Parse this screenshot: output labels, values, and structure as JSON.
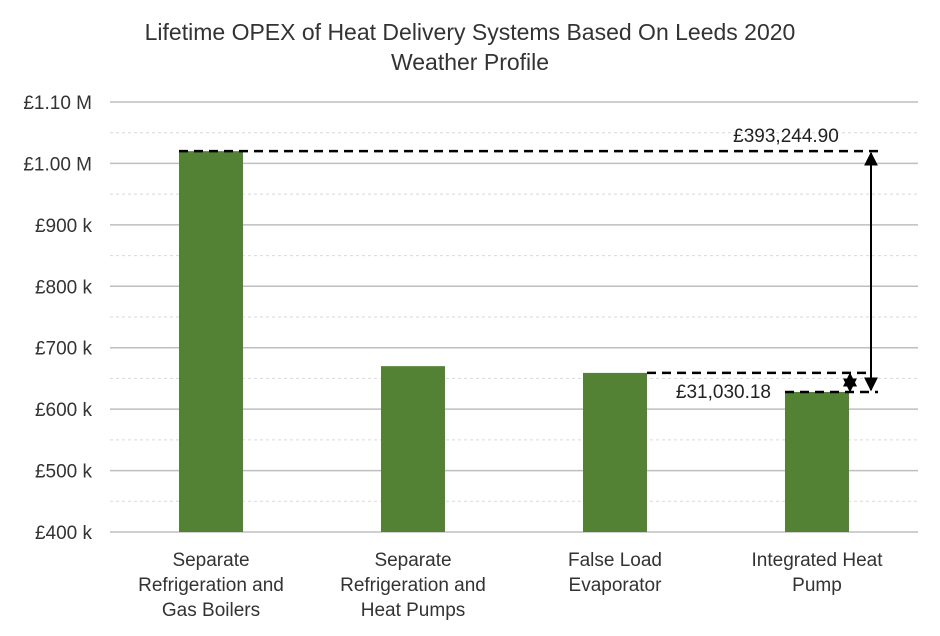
{
  "chart_data": {
    "type": "bar",
    "title_lines": [
      "Lifetime OPEX of Heat Delivery Systems Based On Leeds 2020",
      "Weather Profile"
    ],
    "categories": [
      [
        "Separate",
        "Refrigeration and",
        "Gas Boilers"
      ],
      [
        "Separate",
        "Refrigeration and",
        "Heat Pumps"
      ],
      [
        "False Load",
        "Evaporator"
      ],
      [
        "Integrated Heat",
        "Pump"
      ]
    ],
    "values": [
      1020000,
      670000,
      659000,
      628000
    ],
    "ylim": [
      400000,
      1100000
    ],
    "y_ticks": [
      {
        "value": 1100000,
        "label": "£1.10 M"
      },
      {
        "value": 1000000,
        "label": "£1.00 M"
      },
      {
        "value": 900000,
        "label": "£900 k"
      },
      {
        "value": 800000,
        "label": "£800 k"
      },
      {
        "value": 700000,
        "label": "£700 k"
      },
      {
        "value": 600000,
        "label": "£600 k"
      },
      {
        "value": 500000,
        "label": "£500 k"
      },
      {
        "value": 400000,
        "label": "£400 k"
      }
    ],
    "grid": true,
    "bar_color": "#548235",
    "annotations": [
      {
        "label": "£393,244.90",
        "from_value": 1020000,
        "to_value": 628000
      },
      {
        "label": "£31,030.18",
        "from_value": 659000,
        "to_value": 628000
      }
    ]
  }
}
